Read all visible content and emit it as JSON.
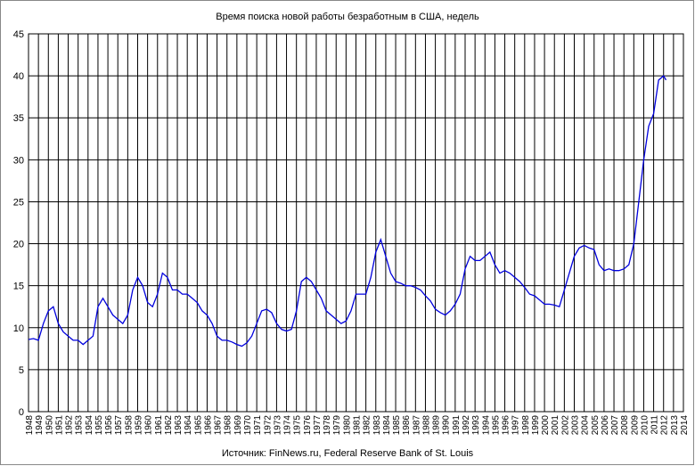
{
  "chart_data": {
    "type": "line",
    "title": "Время поиска новой работы безработным в США, недель",
    "source": "Источник: FinNews.ru, Federal Reserve Bank of St. Louis",
    "x": [
      1948,
      1948.5,
      1949,
      1949.5,
      1950,
      1950.5,
      1951,
      1951.5,
      1952,
      1952.5,
      1953,
      1953.5,
      1954,
      1954.5,
      1955,
      1955.5,
      1956,
      1956.5,
      1957,
      1957.5,
      1958,
      1958.5,
      1959,
      1959.5,
      1960,
      1960.5,
      1961,
      1961.5,
      1962,
      1962.5,
      1963,
      1963.5,
      1964,
      1964.5,
      1965,
      1965.5,
      1966,
      1966.5,
      1967,
      1967.5,
      1968,
      1968.5,
      1969,
      1969.5,
      1970,
      1970.5,
      1971,
      1971.5,
      1972,
      1972.5,
      1973,
      1973.5,
      1974,
      1974.5,
      1975,
      1975.5,
      1976,
      1976.5,
      1977,
      1977.5,
      1978,
      1978.5,
      1979,
      1979.5,
      1980,
      1980.5,
      1981,
      1981.5,
      1982,
      1982.5,
      1983,
      1983.5,
      1984,
      1984.5,
      1985,
      1985.5,
      1986,
      1986.5,
      1987,
      1987.5,
      1988,
      1988.5,
      1989,
      1989.5,
      1990,
      1990.5,
      1991,
      1991.5,
      1992,
      1992.5,
      1993,
      1993.5,
      1994,
      1994.5,
      1995,
      1995.5,
      1996,
      1996.5,
      1997,
      1997.5,
      1998,
      1998.5,
      1999,
      1999.5,
      2000,
      2000.5,
      2001,
      2001.5,
      2002,
      2002.5,
      2003,
      2003.5,
      2004,
      2004.5,
      2005,
      2005.5,
      2006,
      2006.5,
      2007,
      2007.5,
      2008,
      2008.5,
      2009,
      2009.5,
      2010,
      2010.5,
      2011,
      2011.5,
      2012,
      2012.25
    ],
    "series": [
      {
        "color": "#0000dd",
        "values": [
          8.6,
          8.7,
          8.5,
          10.5,
          12,
          12.5,
          10.5,
          9.5,
          9,
          8.5,
          8.5,
          8.0,
          8.5,
          9,
          12.5,
          13.5,
          12.5,
          11.5,
          11,
          10.5,
          11.5,
          14.5,
          16,
          15,
          13,
          12.5,
          14,
          16.5,
          16,
          14.5,
          14.5,
          14,
          14,
          13.5,
          13,
          12,
          11.5,
          10.5,
          9,
          8.5,
          8.5,
          8.3,
          8,
          7.8,
          8.2,
          9,
          10.5,
          12,
          12.2,
          11.8,
          10.5,
          9.8,
          9.6,
          9.8,
          12,
          15.5,
          16,
          15.5,
          14.5,
          13.5,
          12,
          11.5,
          11,
          10.5,
          10.8,
          12,
          14,
          14,
          14,
          16,
          19,
          20.5,
          18.5,
          16.5,
          15.5,
          15.3,
          15,
          15,
          14.8,
          14.5,
          13.8,
          13.2,
          12.2,
          11.8,
          11.5,
          12,
          12.8,
          14,
          17,
          18.5,
          18,
          18,
          18.5,
          19,
          17.5,
          16.5,
          16.8,
          16.5,
          16,
          15.5,
          14.8,
          14,
          13.8,
          13.3,
          12.8,
          12.8,
          12.7,
          12.5,
          14.5,
          16.5,
          18.5,
          19.5,
          19.8,
          19.5,
          19.3,
          17.5,
          16.8,
          17,
          16.8,
          16.8,
          17,
          17.5,
          20,
          25,
          30,
          34,
          35.5,
          39.5,
          40,
          39.5
        ]
      }
    ],
    "xlim": [
      1948,
      2014
    ],
    "xticks": [
      1948,
      1949,
      1950,
      1951,
      1952,
      1953,
      1954,
      1955,
      1956,
      1957,
      1958,
      1959,
      1960,
      1961,
      1962,
      1963,
      1964,
      1965,
      1966,
      1967,
      1968,
      1969,
      1970,
      1971,
      1972,
      1973,
      1974,
      1975,
      1976,
      1977,
      1978,
      1979,
      1980,
      1981,
      1982,
      1983,
      1984,
      1985,
      1986,
      1987,
      1988,
      1989,
      1990,
      1991,
      1992,
      1993,
      1994,
      1995,
      1996,
      1997,
      1998,
      1999,
      2000,
      2001,
      2002,
      2003,
      2004,
      2005,
      2006,
      2007,
      2008,
      2009,
      2010,
      2011,
      2012,
      2013,
      2014
    ],
    "ylim": [
      0,
      45
    ],
    "yticks": [
      0,
      5,
      10,
      15,
      20,
      25,
      30,
      35,
      40,
      45
    ],
    "grid": true
  }
}
